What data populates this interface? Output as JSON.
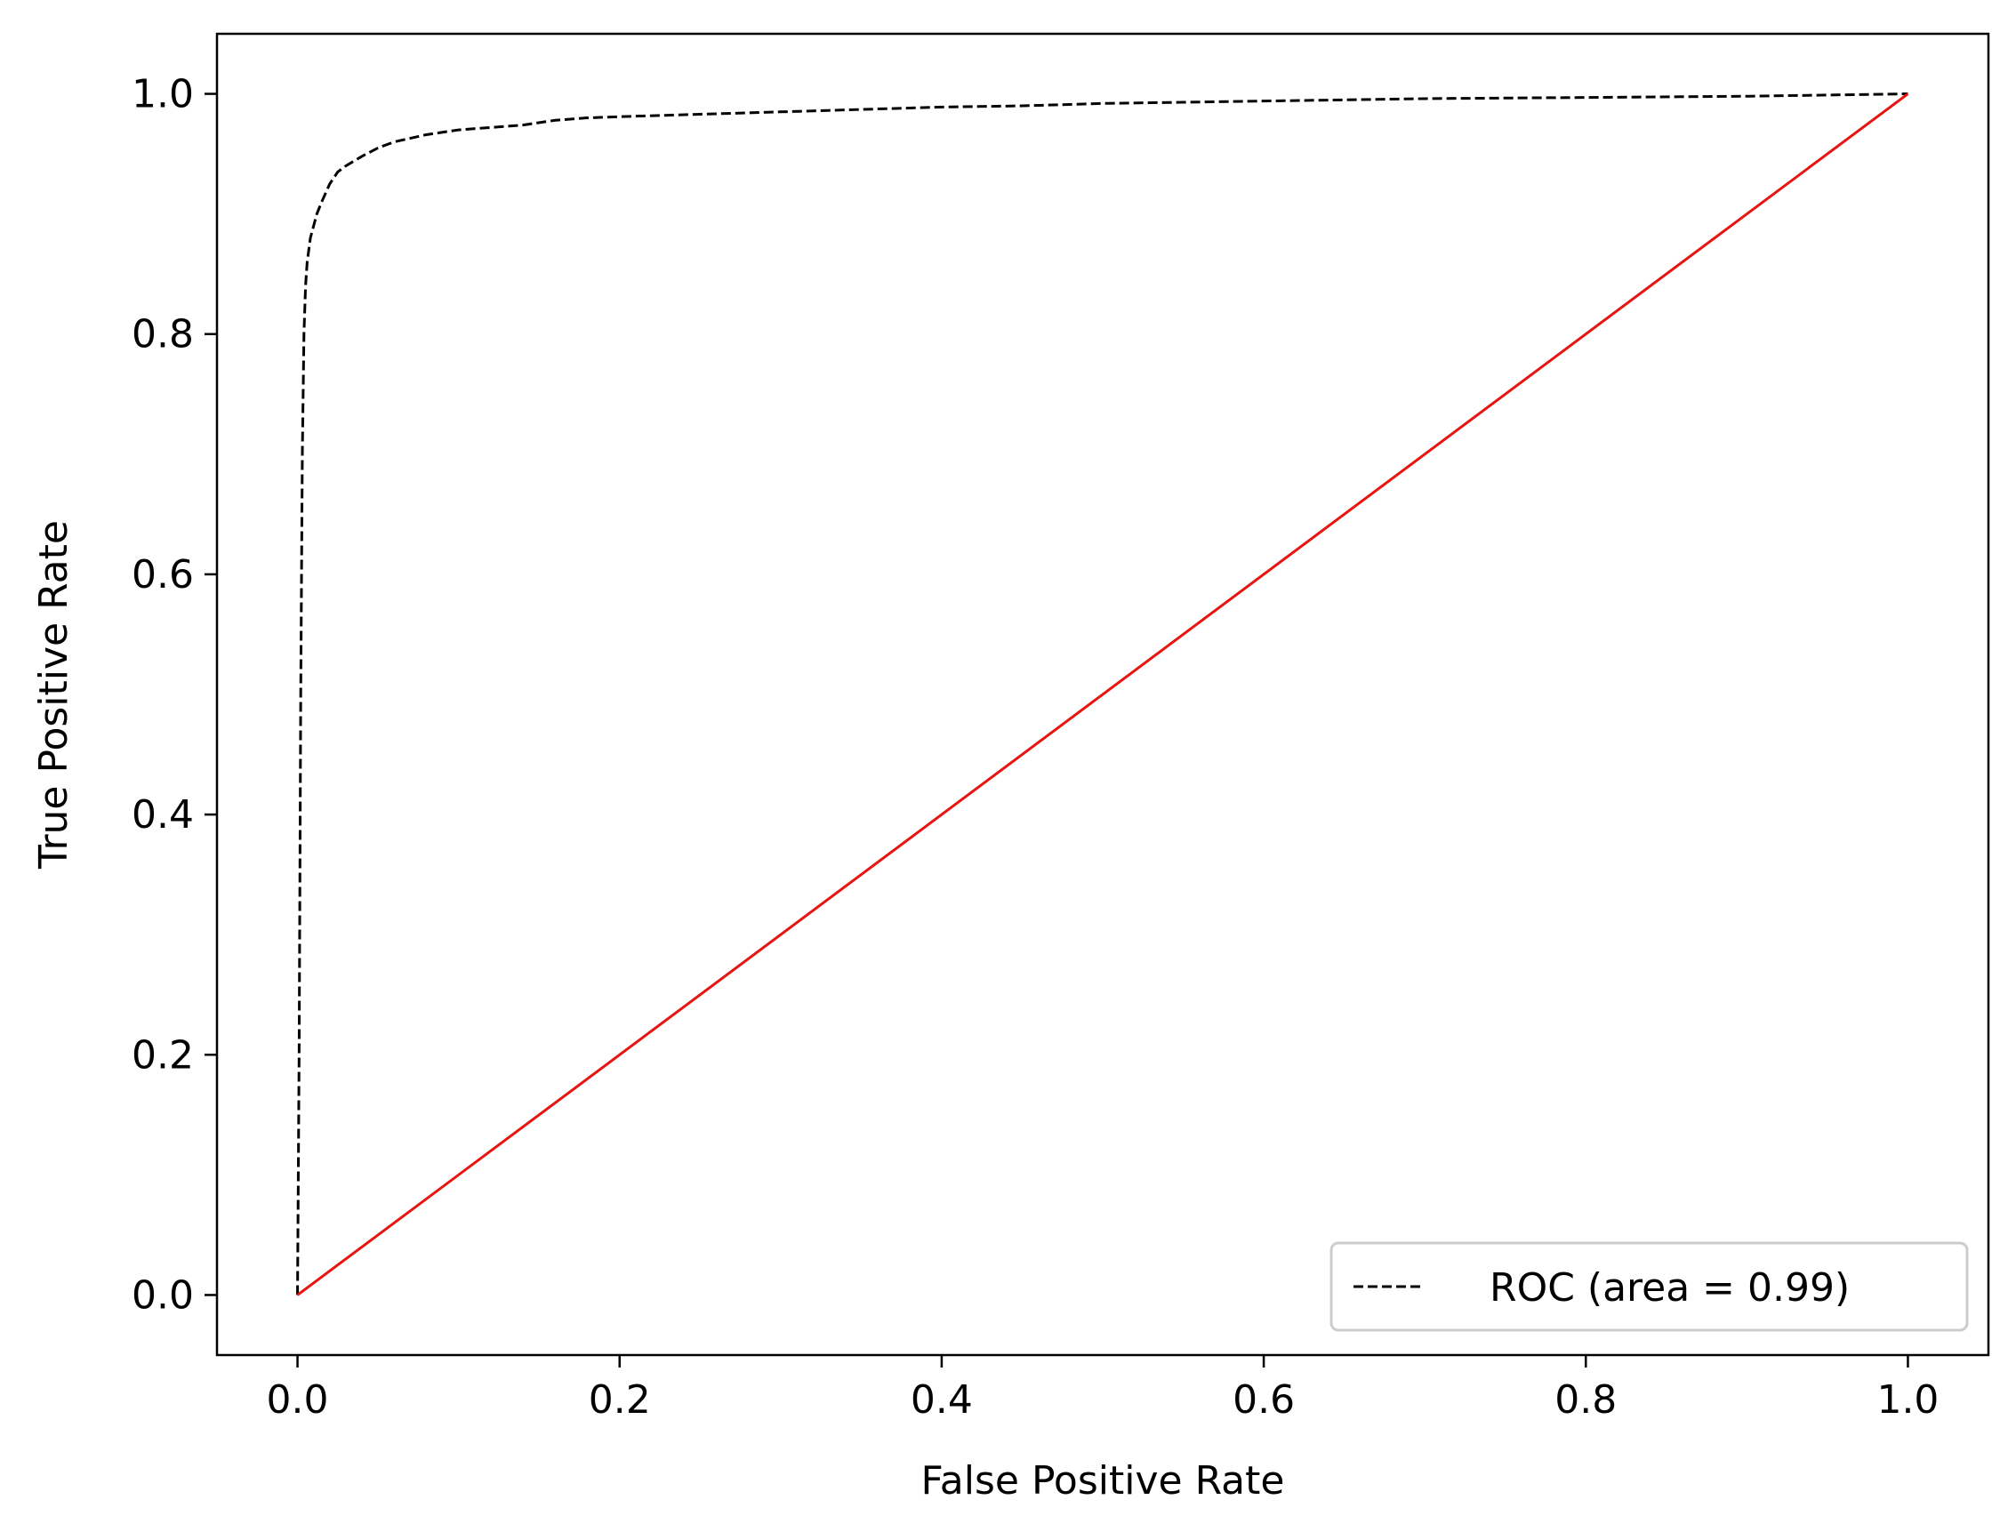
{
  "chart_data": {
    "type": "line",
    "title": "",
    "xlabel": "False Positive Rate",
    "ylabel": "True Positive Rate",
    "xlim": [
      -0.05,
      1.05
    ],
    "ylim": [
      -0.05,
      1.05
    ],
    "xticks": [
      0.0,
      0.2,
      0.4,
      0.6,
      0.8,
      1.0
    ],
    "xtick_labels": [
      "0.0",
      "0.2",
      "0.4",
      "0.6",
      "0.8",
      "1.0"
    ],
    "yticks": [
      0.0,
      0.2,
      0.4,
      0.6,
      0.8,
      1.0
    ],
    "ytick_labels": [
      "0.0",
      "0.2",
      "0.4",
      "0.6",
      "0.8",
      "1.0"
    ],
    "grid": false,
    "legend_position": "lower right",
    "series": [
      {
        "name": "ROC (area = 0.99)",
        "style": "dashed",
        "color": "#000000",
        "x": [
          0.0,
          0.001,
          0.002,
          0.003,
          0.004,
          0.005,
          0.006,
          0.008,
          0.01,
          0.012,
          0.015,
          0.02,
          0.025,
          0.03,
          0.04,
          0.05,
          0.06,
          0.07,
          0.08,
          0.09,
          0.1,
          0.12,
          0.14,
          0.16,
          0.18,
          0.2,
          0.25,
          0.3,
          0.35,
          0.4,
          0.45,
          0.5,
          0.55,
          0.6,
          0.65,
          0.7,
          0.8,
          0.9,
          0.95,
          1.0
        ],
        "y": [
          0.0,
          0.2,
          0.5,
          0.7,
          0.8,
          0.84,
          0.86,
          0.88,
          0.89,
          0.9,
          0.91,
          0.925,
          0.935,
          0.94,
          0.948,
          0.955,
          0.96,
          0.963,
          0.966,
          0.968,
          0.97,
          0.972,
          0.974,
          0.978,
          0.98,
          0.981,
          0.983,
          0.985,
          0.987,
          0.989,
          0.99,
          0.992,
          0.993,
          0.994,
          0.995,
          0.996,
          0.997,
          0.998,
          0.999,
          1.0
        ]
      },
      {
        "name": "",
        "style": "solid",
        "color": "#e8140f",
        "x": [
          0.0,
          1.0
        ],
        "y": [
          0.0,
          1.0
        ]
      }
    ]
  }
}
